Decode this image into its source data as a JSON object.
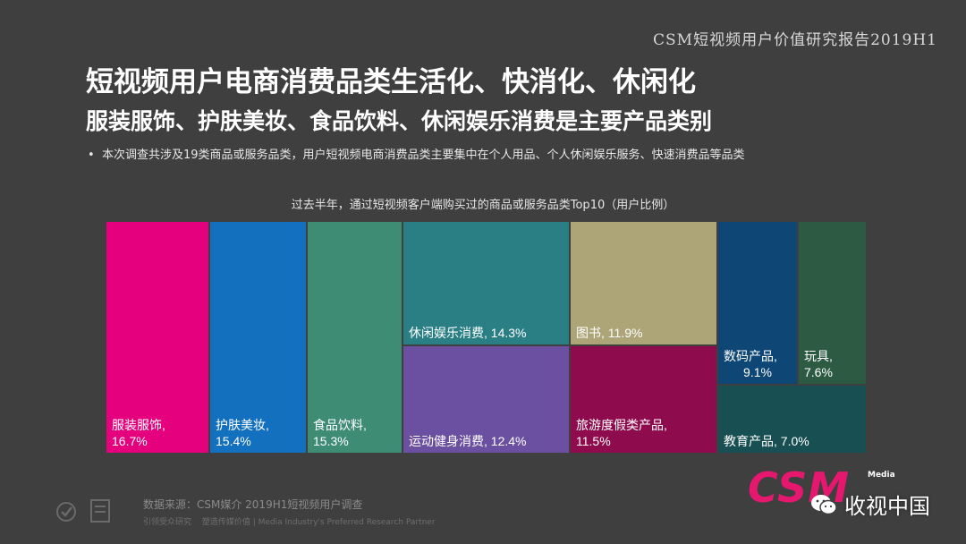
{
  "brand": "CSM短视频用户价值研究报告2019H1",
  "title_line1": "短视频用户电商消费品类生活化、快消化、休闲化",
  "title_line2": "服装服饰、护肤美妆、食品饮料、休闲娱乐消费是主要产品类别",
  "bullet_text": "本次调查共涉及19类商品或服务品类，用户短视频电商消费品类主要集中在个人用品、个人休闲娱乐服务、快速消费品等品类",
  "chart_data": {
    "type": "treemap",
    "title": "过去半年，通过短视频客户端购买过的商品或服务品类Top10（用户比例）",
    "unit": "%",
    "items": [
      {
        "label": "服装服饰",
        "value": 16.7,
        "color": "#e5007e"
      },
      {
        "label": "护肤美妆",
        "value": 15.4,
        "color": "#1270bf"
      },
      {
        "label": "食品饮料",
        "value": 15.3,
        "color": "#3f8c74"
      },
      {
        "label": "休闲娱乐消费",
        "value": 14.3,
        "color": "#2a7f84"
      },
      {
        "label": "运动健身消费",
        "value": 12.4,
        "color": "#6b4fa0"
      },
      {
        "label": "图书",
        "value": 11.9,
        "color": "#ada477"
      },
      {
        "label": "旅游度假类产品",
        "value": 11.5,
        "color": "#8e0c4e"
      },
      {
        "label": "数码产品",
        "value": 9.1,
        "color": "#0e4675"
      },
      {
        "label": "玩具",
        "value": 7.6,
        "color": "#2c5a43"
      },
      {
        "label": "教育产品",
        "value": 7.0,
        "color": "#184f52"
      }
    ]
  },
  "source_text": "数据来源：CSM媒介 2019H1短视频用户调查",
  "source_sub": "引领受众研究　 塑造传媒价值 | Media Industry's Preferred Research Partner",
  "logo_text": "CSM",
  "logo_sub": "Media",
  "wechat_label": "收视中国",
  "icons": [
    "check-badge-icon",
    "certificate-icon",
    "wechat-icon"
  ]
}
